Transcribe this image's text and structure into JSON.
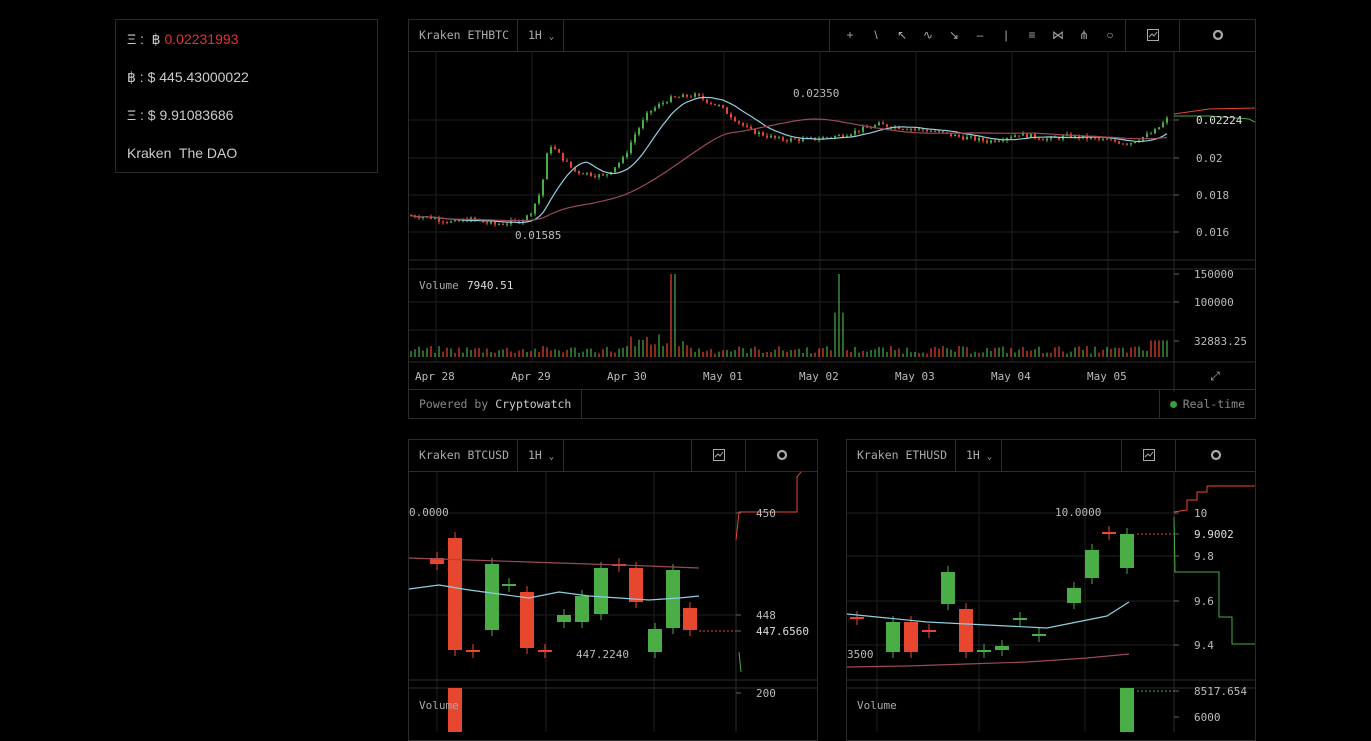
{
  "ticker": {
    "eth_label": "Ξ :",
    "btc_symbol": "฿",
    "eth_btc_price": "0.02231993",
    "btc_label": "฿ :",
    "btc_usd": "$ 445.43000022",
    "eth_label2": "Ξ :",
    "eth_usd": "$ 9.91083686",
    "exchange": "Kraken",
    "token": "The DAO"
  },
  "main_widget": {
    "title": "Kraken ETHBTC",
    "interval": "1H",
    "tools": [
      "crosshair-icon",
      "trendline-icon",
      "ray-icon",
      "fib-icon",
      "arrow-icon",
      "horizontal-line-icon",
      "vertical-line-icon",
      "parallel-channel-icon",
      "pitchfork-icon",
      "gann-fan-icon",
      "circle-icon"
    ],
    "chart_icon": "indicators-icon",
    "settings_icon": "gear-icon",
    "price_axis": [
      "0.02224",
      "0.02",
      "0.018",
      "0.016"
    ],
    "high_label": "0.02350",
    "low_label": "0.01585",
    "volume_label": "Volume",
    "volume_value": "7940.51",
    "volume_axis": [
      "150000",
      "100000",
      "32883.25"
    ],
    "dates": [
      "Apr 28",
      "Apr 29",
      "Apr 30",
      "May 01",
      "May 02",
      "May 03",
      "May 04",
      "May 05"
    ],
    "powered_prefix": "Powered by",
    "powered_brand": "Cryptowatch",
    "realtime": "Real-time",
    "colors": {
      "up": "#4aad45",
      "down": "#e8472f",
      "ma_fast": "#8ecfe0",
      "ma_slow": "#9a4a58"
    }
  },
  "btc_widget": {
    "title": "Kraken BTCUSD",
    "interval": "1H",
    "price_axis": [
      "450",
      "448",
      "447.6560",
      "200"
    ],
    "left_label": "0.0000",
    "low_label": "447.2240",
    "volume_label": "Volume"
  },
  "eth_widget": {
    "title": "Kraken ETHUSD",
    "interval": "1H",
    "price_axis": [
      "10",
      "9.9002",
      "9.8",
      "9.6",
      "9.4",
      "8517.654",
      "6000"
    ],
    "high_label": "10.0000",
    "left_label": "3500",
    "volume_label": "Volume"
  }
}
